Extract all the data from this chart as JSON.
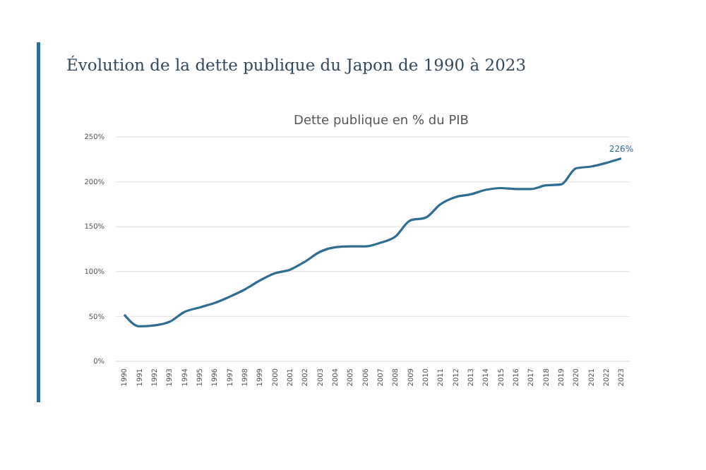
{
  "chart_data": {
    "type": "line",
    "title": "Évolution de la dette publique du Japon de 1990 à 2023",
    "subtitle": "Dette publique en % du PIB",
    "categories": [
      "1990",
      "1991",
      "1992",
      "1993",
      "1994",
      "1995",
      "1996",
      "1997",
      "1998",
      "1999",
      "2000",
      "2001",
      "2002",
      "2003",
      "2004",
      "2005",
      "2006",
      "2007",
      "2008",
      "2009",
      "2010",
      "2011",
      "2012",
      "2013",
      "2014",
      "2015",
      "2016",
      "2017",
      "2018",
      "2019",
      "2020",
      "2021",
      "2022",
      "2023"
    ],
    "series": [
      {
        "color": "#2e6e93",
        "values": [
          52,
          39,
          40,
          44,
          55,
          60,
          65,
          72,
          80,
          90,
          98,
          102,
          111,
          122,
          127,
          128,
          128,
          132,
          139,
          157,
          160,
          175,
          183,
          186,
          191,
          193,
          192,
          192,
          196,
          197,
          215,
          217,
          221,
          226
        ],
        "value_labels": [
          null,
          null,
          null,
          null,
          null,
          null,
          null,
          null,
          null,
          null,
          null,
          null,
          null,
          null,
          null,
          null,
          null,
          null,
          null,
          null,
          null,
          null,
          null,
          null,
          null,
          null,
          null,
          null,
          null,
          null,
          null,
          null,
          null,
          "226%"
        ]
      }
    ],
    "ylim": [
      0,
      250
    ],
    "yticks": [
      {
        "value": 0,
        "label": "0%"
      },
      {
        "value": 50,
        "label": "50%"
      },
      {
        "value": 100,
        "label": "100%"
      },
      {
        "value": 150,
        "label": "150%"
      },
      {
        "value": 200,
        "label": "200%"
      },
      {
        "value": 250,
        "label": "250%"
      }
    ],
    "grid": "y",
    "marker": "none",
    "line_style": "solid"
  }
}
